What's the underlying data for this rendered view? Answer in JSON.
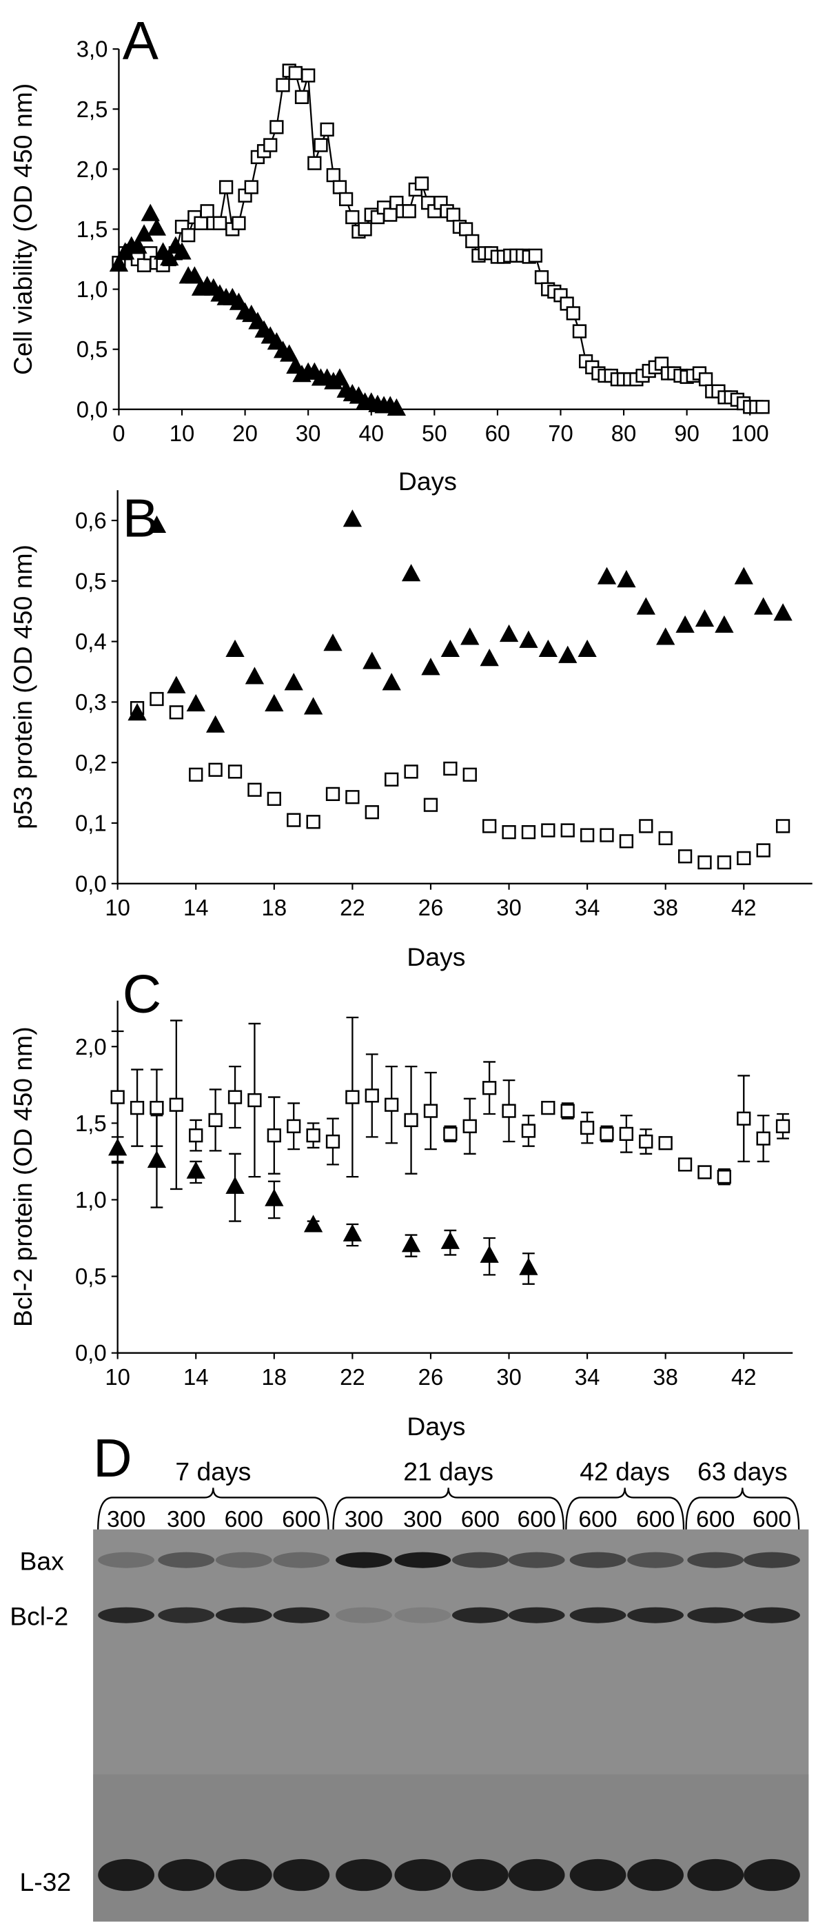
{
  "chart_data": [
    {
      "type": "scatter",
      "panel_label": "A",
      "y_label": "Cell viability (OD 450 nm)",
      "x_label": "Days",
      "xlim": [
        0,
        102.5
      ],
      "ylim": [
        0,
        3.0
      ],
      "xticks": [
        0,
        10,
        20,
        30,
        40,
        50,
        60,
        70,
        80,
        90,
        100
      ],
      "yticks": [
        {
          "value": 0,
          "label": "0,0"
        },
        {
          "value": 0.5,
          "label": "0,5"
        },
        {
          "value": 1.0,
          "label": "1,0"
        },
        {
          "value": 1.5,
          "label": "1,5"
        },
        {
          "value": 2.0,
          "label": "2,0"
        },
        {
          "value": 2.5,
          "label": "2,5"
        },
        {
          "value": 3.0,
          "label": "3,0"
        }
      ],
      "grid": false,
      "series": [
        {
          "marker": "square",
          "color": "#000000",
          "marker_fill": "#ffffff",
          "line": true,
          "x": [
            0,
            1,
            2,
            3,
            4,
            5,
            6,
            7,
            8,
            9,
            10,
            11,
            12,
            13,
            14,
            15,
            16,
            17,
            18,
            19,
            20,
            21,
            22,
            23,
            24,
            25,
            26,
            27,
            28,
            29,
            30,
            31,
            32,
            33,
            34,
            35,
            36,
            37,
            38,
            39,
            40,
            41,
            42,
            43,
            44,
            45,
            46,
            47,
            48,
            49,
            50,
            51,
            52,
            53,
            54,
            55,
            56,
            57,
            58,
            59,
            60,
            61,
            62,
            63,
            64,
            65,
            66,
            67,
            68,
            69,
            70,
            71,
            72,
            73,
            74,
            75,
            76,
            77,
            78,
            79,
            80,
            81,
            82,
            83,
            84,
            85,
            86,
            87,
            88,
            89,
            90,
            91,
            92,
            93,
            94,
            95,
            96,
            97,
            98,
            99,
            100,
            101,
            102
          ],
          "values": [
            1.22,
            1.3,
            1.32,
            1.25,
            1.2,
            1.3,
            1.22,
            1.2,
            1.25,
            1.3,
            1.52,
            1.45,
            1.6,
            1.55,
            1.65,
            1.55,
            1.55,
            1.85,
            1.5,
            1.55,
            1.78,
            1.85,
            2.1,
            2.15,
            2.2,
            2.35,
            2.7,
            2.82,
            2.8,
            2.6,
            2.78,
            2.05,
            2.2,
            2.33,
            1.95,
            1.85,
            1.75,
            1.6,
            1.48,
            1.5,
            1.62,
            1.6,
            1.68,
            1.62,
            1.72,
            1.65,
            1.65,
            1.83,
            1.88,
            1.72,
            1.65,
            1.72,
            1.65,
            1.62,
            1.52,
            1.5,
            1.4,
            1.28,
            1.3,
            1.3,
            1.27,
            1.27,
            1.28,
            1.28,
            1.28,
            1.27,
            1.28,
            1.1,
            1.0,
            0.98,
            0.95,
            0.88,
            0.8,
            0.65,
            0.4,
            0.35,
            0.3,
            0.28,
            0.28,
            0.25,
            0.25,
            0.25,
            0.25,
            0.28,
            0.32,
            0.35,
            0.38,
            0.3,
            0.3,
            0.28,
            0.27,
            0.28,
            0.3,
            0.25,
            0.15,
            0.15,
            0.1,
            0.1,
            0.08,
            0.05,
            0.02,
            0.02,
            0.02
          ]
        },
        {
          "marker": "triangle",
          "color": "#000000",
          "marker_fill": "#000000",
          "line": false,
          "x": [
            0,
            1,
            2,
            3,
            4,
            5,
            6,
            7,
            8,
            9,
            10,
            11,
            12,
            13,
            14,
            15,
            16,
            17,
            18,
            19,
            20,
            21,
            22,
            23,
            24,
            25,
            26,
            27,
            28,
            29,
            30,
            31,
            32,
            33,
            34,
            35,
            36,
            37,
            38,
            39,
            40,
            41,
            42,
            43,
            44
          ],
          "values": [
            1.2,
            1.3,
            1.35,
            1.35,
            1.45,
            1.62,
            1.5,
            1.3,
            1.25,
            1.35,
            1.3,
            1.1,
            1.1,
            1.0,
            1.02,
            1.0,
            0.95,
            0.92,
            0.92,
            0.88,
            0.8,
            0.78,
            0.72,
            0.65,
            0.6,
            0.55,
            0.48,
            0.45,
            0.35,
            0.28,
            0.3,
            0.3,
            0.25,
            0.25,
            0.22,
            0.25,
            0.15,
            0.12,
            0.1,
            0.05,
            0.05,
            0.03,
            0.02,
            0.02,
            0.0
          ]
        }
      ]
    },
    {
      "type": "scatter",
      "panel_label": "B",
      "y_label": "p53 protein (OD 450 nm)",
      "x_label": "Days",
      "xlim": [
        10,
        45.5
      ],
      "ylim": [
        0,
        0.65
      ],
      "xticks": [
        10,
        14,
        18,
        22,
        26,
        30,
        34,
        38,
        42
      ],
      "yticks": [
        {
          "value": 0,
          "label": "0,0"
        },
        {
          "value": 0.1,
          "label": "0,1"
        },
        {
          "value": 0.2,
          "label": "0,2"
        },
        {
          "value": 0.3,
          "label": "0,3"
        },
        {
          "value": 0.4,
          "label": "0,4"
        },
        {
          "value": 0.5,
          "label": "0,5"
        },
        {
          "value": 0.6,
          "label": "0,6"
        }
      ],
      "grid": false,
      "series": [
        {
          "marker": "square",
          "color": "#000000",
          "marker_fill": "#ffffff",
          "line": false,
          "x": [
            11,
            12,
            13,
            14,
            15,
            16,
            17,
            18,
            19,
            20,
            21,
            22,
            23,
            24,
            25,
            26,
            27,
            28,
            29,
            30,
            31,
            32,
            33,
            34,
            35,
            36,
            37,
            38,
            39,
            40,
            41,
            42,
            43,
            44
          ],
          "values": [
            0.29,
            0.305,
            0.283,
            0.18,
            0.188,
            0.185,
            0.155,
            0.14,
            0.105,
            0.102,
            0.148,
            0.143,
            0.118,
            0.172,
            0.185,
            0.13,
            0.19,
            0.18,
            0.095,
            0.085,
            0.085,
            0.088,
            0.088,
            0.08,
            0.08,
            0.07,
            0.095,
            0.075,
            0.045,
            0.035,
            0.035,
            0.042,
            0.055,
            0.095
          ]
        },
        {
          "marker": "triangle",
          "color": "#000000",
          "marker_fill": "#000000",
          "line": false,
          "x": [
            11,
            12,
            13,
            14,
            15,
            16,
            17,
            18,
            19,
            20,
            21,
            22,
            23,
            24,
            25,
            26,
            27,
            28,
            29,
            30,
            31,
            32,
            33,
            34,
            35,
            36,
            37,
            38,
            39,
            40,
            41,
            42,
            43,
            44
          ],
          "values": [
            0.28,
            0.59,
            0.325,
            0.295,
            0.26,
            0.385,
            0.34,
            0.295,
            0.33,
            0.29,
            0.395,
            0.6,
            0.365,
            0.33,
            0.51,
            0.355,
            0.385,
            0.405,
            0.37,
            0.41,
            0.4,
            0.385,
            0.375,
            0.385,
            0.505,
            0.5,
            0.455,
            0.405,
            0.425,
            0.435,
            0.425,
            0.505,
            0.455,
            0.445
          ]
        }
      ]
    },
    {
      "type": "scatter",
      "panel_label": "C",
      "y_label": "Bcl-2 protein (OD 450 nm)",
      "x_label": "Days",
      "xlim": [
        10,
        44.5
      ],
      "ylim": [
        0,
        2.3
      ],
      "xticks": [
        10,
        14,
        18,
        22,
        26,
        30,
        34,
        38,
        42
      ],
      "yticks": [
        {
          "value": 0,
          "label": "0,0"
        },
        {
          "value": 0.5,
          "label": "0,5"
        },
        {
          "value": 1.0,
          "label": "1,0"
        },
        {
          "value": 1.5,
          "label": "1,5"
        },
        {
          "value": 2.0,
          "label": "2,0"
        }
      ],
      "grid": false,
      "series": [
        {
          "marker": "square",
          "color": "#000000",
          "marker_fill": "#ffffff",
          "line": false,
          "x": [
            10,
            11,
            12,
            13,
            14,
            15,
            16,
            17,
            18,
            19,
            20,
            21,
            22,
            23,
            24,
            25,
            26,
            27,
            28,
            29,
            30,
            31,
            32,
            33,
            34,
            35,
            36,
            37,
            38,
            39,
            40,
            41,
            42,
            43,
            44
          ],
          "values": [
            1.67,
            1.6,
            1.6,
            1.62,
            1.42,
            1.52,
            1.67,
            1.65,
            1.42,
            1.48,
            1.42,
            1.38,
            1.67,
            1.68,
            1.62,
            1.52,
            1.58,
            1.43,
            1.48,
            1.73,
            1.58,
            1.45,
            1.6,
            1.58,
            1.47,
            1.43,
            1.43,
            1.38,
            1.37,
            1.23,
            1.18,
            1.15,
            1.53,
            1.4,
            1.48
          ],
          "errors": [
            0.43,
            0.25,
            0.25,
            0.55,
            0.1,
            0.2,
            0.2,
            0.5,
            0.25,
            0.15,
            0.08,
            0.15,
            0.52,
            0.27,
            0.25,
            0.35,
            0.25,
            0.05,
            0.18,
            0.17,
            0.2,
            0.1,
            0.02,
            0.05,
            0.1,
            0.05,
            0.12,
            0.08,
            0.03,
            0.02,
            0.02,
            0.05,
            0.28,
            0.15,
            0.08
          ]
        },
        {
          "marker": "triangle",
          "color": "#000000",
          "marker_fill": "#000000",
          "line": false,
          "x": [
            10,
            12,
            14,
            16,
            18,
            20,
            22,
            25,
            27,
            29,
            31
          ],
          "values": [
            1.33,
            1.25,
            1.18,
            1.08,
            1.0,
            0.83,
            0.77,
            0.7,
            0.72,
            0.63,
            0.55
          ],
          "errors": [
            0.08,
            0.3,
            0.07,
            0.22,
            0.12,
            0.03,
            0.07,
            0.07,
            0.08,
            0.12,
            0.1
          ]
        }
      ]
    }
  ],
  "blot": {
    "panel_label": "D",
    "groups": [
      "7 days",
      "21 days",
      "42 days",
      "63 days"
    ],
    "lanes": [
      "300",
      "300",
      "600",
      "600",
      "300",
      "300",
      "600",
      "600",
      "600",
      "600",
      "600",
      "600"
    ],
    "bands": [
      "Bax",
      "Bcl-2",
      "L-32"
    ]
  }
}
